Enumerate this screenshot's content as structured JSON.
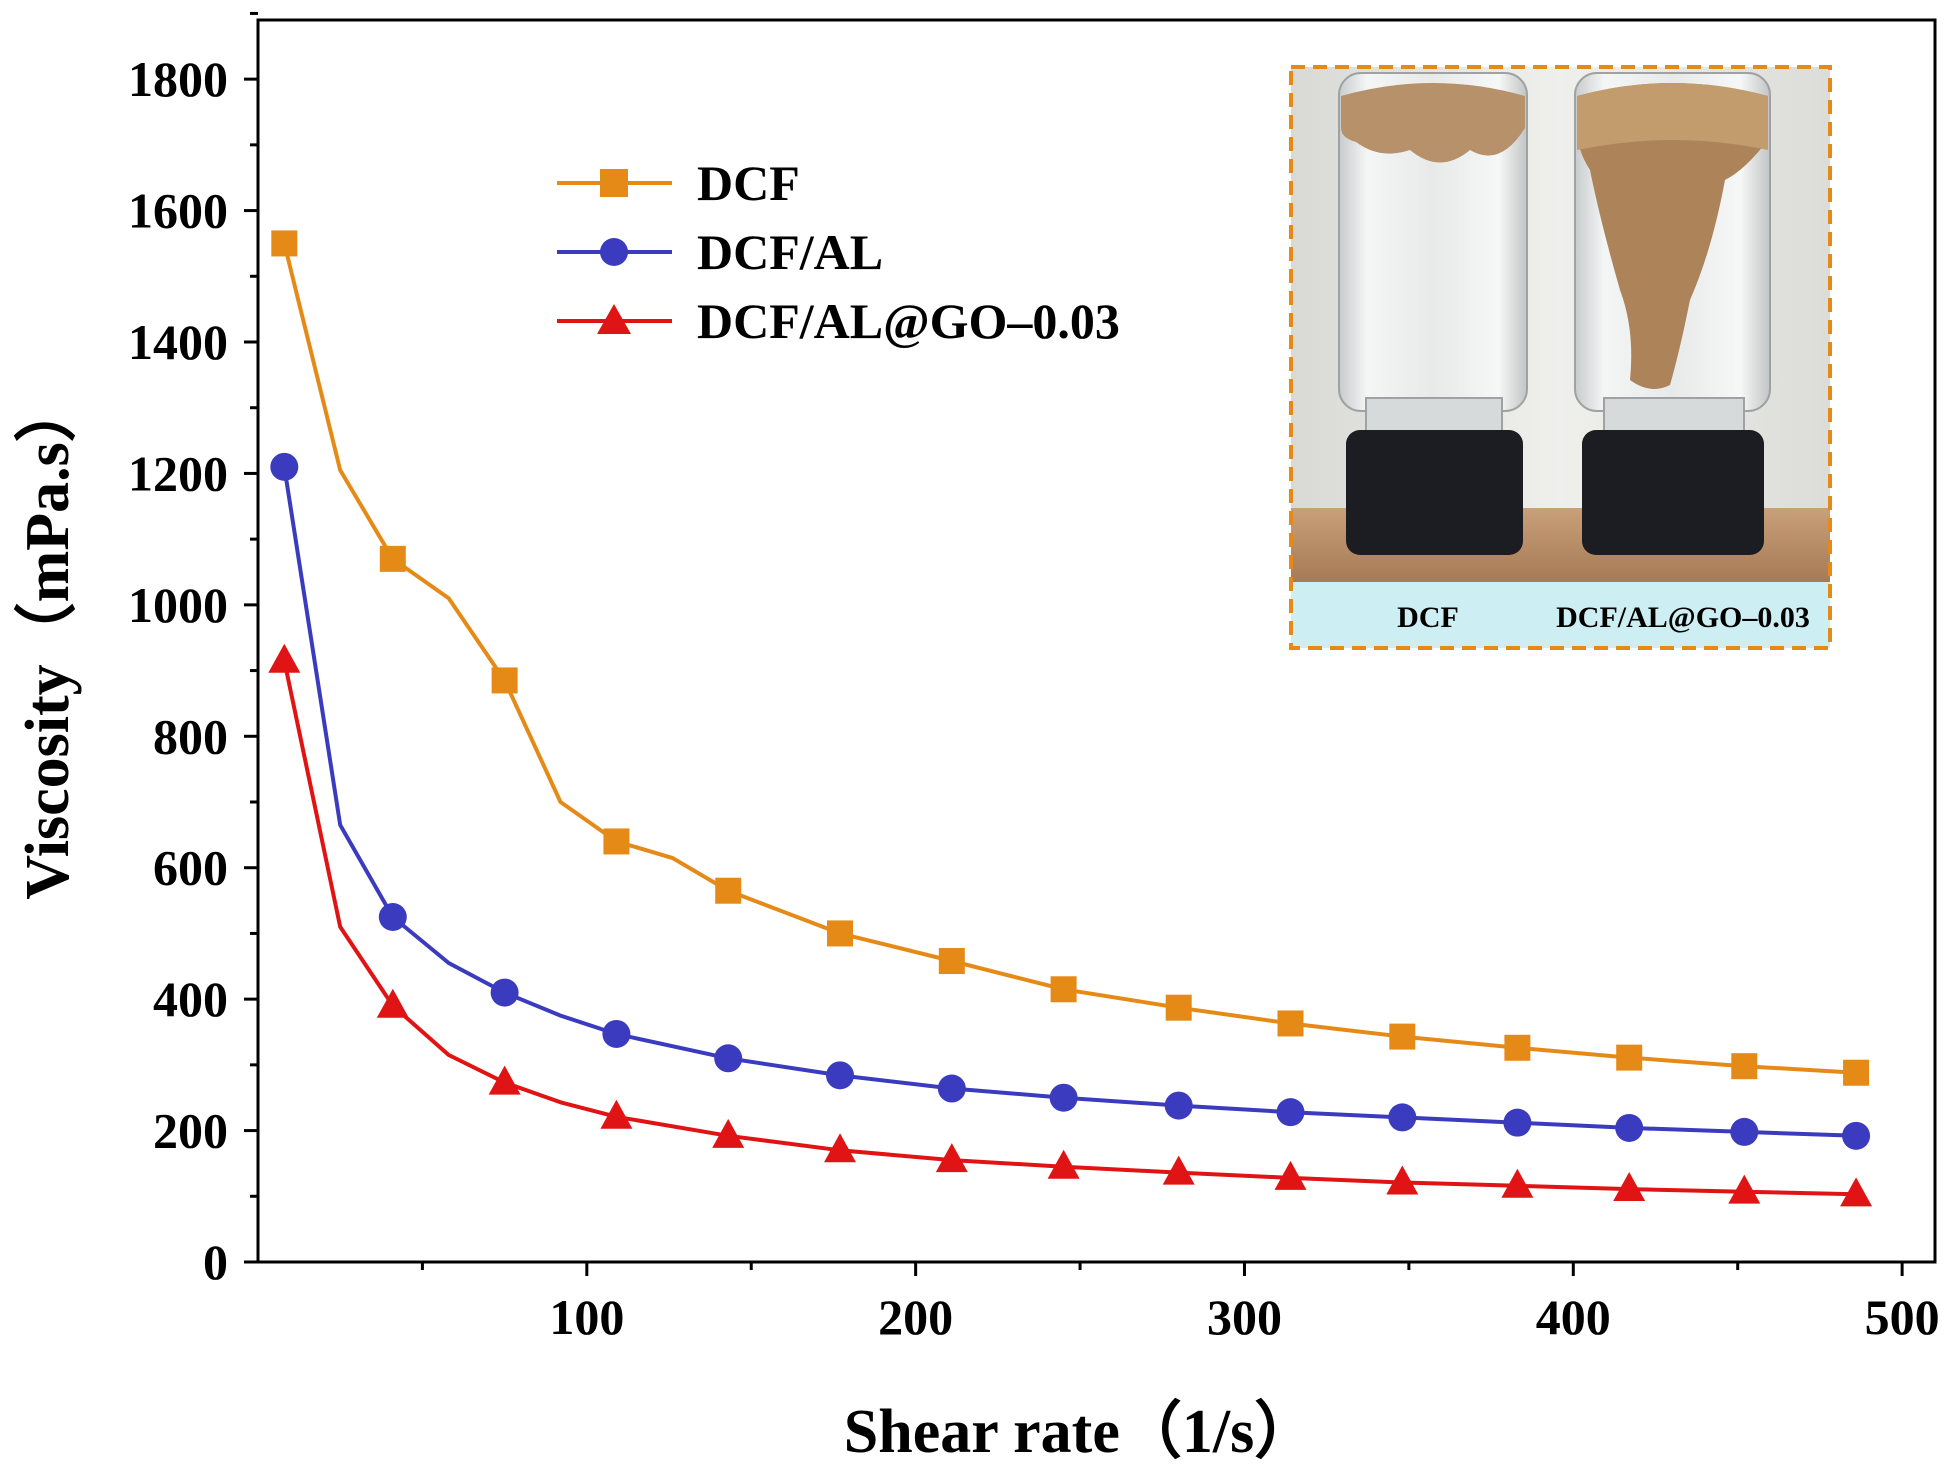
{
  "chart_data": {
    "type": "line",
    "title": "",
    "xlabel": "Shear rate（1/s）",
    "ylabel": "Viscosity（mPa.s）",
    "xlim": [
      0,
      510
    ],
    "ylim": [
      0,
      1890
    ],
    "xticks": [
      100,
      200,
      300,
      400,
      500
    ],
    "yticks": [
      0,
      200,
      400,
      600,
      800,
      1000,
      1200,
      1400,
      1600,
      1800
    ],
    "grid": false,
    "legend_position": "top-left",
    "series": [
      {
        "name": "DCF",
        "color": "#e68a17",
        "marker": "square",
        "curve": [
          [
            8,
            1550
          ],
          [
            25,
            1205
          ],
          [
            41,
            1070
          ],
          [
            58,
            1010
          ],
          [
            75,
            885
          ],
          [
            92,
            700
          ],
          [
            109,
            640
          ],
          [
            126,
            615
          ],
          [
            143,
            565
          ],
          [
            177,
            500
          ],
          [
            211,
            458
          ],
          [
            245,
            415
          ],
          [
            280,
            387
          ],
          [
            314,
            363
          ],
          [
            348,
            343
          ],
          [
            383,
            326
          ],
          [
            417,
            311
          ],
          [
            452,
            298
          ],
          [
            486,
            288
          ]
        ],
        "markers": [
          [
            8,
            1550
          ],
          [
            41,
            1070
          ],
          [
            75,
            885
          ],
          [
            109,
            640
          ],
          [
            143,
            565
          ],
          [
            177,
            500
          ],
          [
            211,
            458
          ],
          [
            245,
            415
          ],
          [
            280,
            387
          ],
          [
            314,
            363
          ],
          [
            348,
            343
          ],
          [
            383,
            326
          ],
          [
            417,
            311
          ],
          [
            452,
            298
          ],
          [
            486,
            288
          ]
        ]
      },
      {
        "name": "DCF/AL",
        "color": "#3b3bbf",
        "marker": "circle",
        "curve": [
          [
            8,
            1210
          ],
          [
            25,
            665
          ],
          [
            41,
            525
          ],
          [
            58,
            455
          ],
          [
            75,
            410
          ],
          [
            92,
            375
          ],
          [
            109,
            347
          ],
          [
            143,
            310
          ],
          [
            177,
            284
          ],
          [
            211,
            264
          ],
          [
            245,
            250
          ],
          [
            280,
            238
          ],
          [
            314,
            228
          ],
          [
            348,
            220
          ],
          [
            383,
            212
          ],
          [
            417,
            204
          ],
          [
            452,
            198
          ],
          [
            486,
            192
          ]
        ],
        "markers": [
          [
            8,
            1210
          ],
          [
            41,
            525
          ],
          [
            75,
            410
          ],
          [
            109,
            347
          ],
          [
            143,
            310
          ],
          [
            177,
            284
          ],
          [
            211,
            264
          ],
          [
            245,
            250
          ],
          [
            280,
            238
          ],
          [
            314,
            228
          ],
          [
            348,
            220
          ],
          [
            383,
            212
          ],
          [
            417,
            204
          ],
          [
            452,
            198
          ],
          [
            486,
            192
          ]
        ]
      },
      {
        "name": "DCF/AL@GO–0.03",
        "color": "#e01414",
        "marker": "triangle",
        "curve": [
          [
            8,
            915
          ],
          [
            25,
            510
          ],
          [
            41,
            390
          ],
          [
            58,
            315
          ],
          [
            75,
            273
          ],
          [
            92,
            243
          ],
          [
            109,
            221
          ],
          [
            143,
            192
          ],
          [
            177,
            170
          ],
          [
            211,
            155
          ],
          [
            245,
            145
          ],
          [
            280,
            136
          ],
          [
            314,
            128
          ],
          [
            348,
            121
          ],
          [
            383,
            116
          ],
          [
            417,
            111
          ],
          [
            452,
            107
          ],
          [
            486,
            103
          ]
        ],
        "markers": [
          [
            8,
            915
          ],
          [
            41,
            390
          ],
          [
            75,
            273
          ],
          [
            109,
            221
          ],
          [
            143,
            192
          ],
          [
            177,
            170
          ],
          [
            211,
            155
          ],
          [
            245,
            145
          ],
          [
            280,
            136
          ],
          [
            314,
            128
          ],
          [
            348,
            121
          ],
          [
            383,
            116
          ],
          [
            417,
            111
          ],
          [
            452,
            107
          ],
          [
            486,
            103
          ]
        ]
      }
    ],
    "inset": {
      "description": "photo of two inverted vials",
      "captions": [
        "DCF",
        "DCF/AL@GO–0.03"
      ],
      "border_color": "#e68a17",
      "caption_bg": "#cdeef2"
    }
  }
}
